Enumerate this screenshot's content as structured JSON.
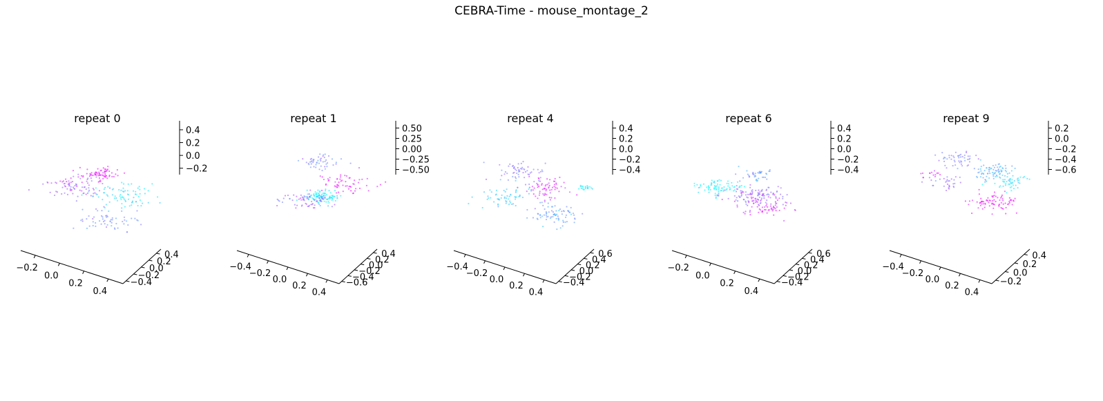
{
  "figure": {
    "suptitle": "CEBRA-Time - mouse_montage_2",
    "colors": {
      "low": "#00ffff",
      "high": "#ff00ff",
      "axis": "#000000"
    }
  },
  "chart_data": [
    {
      "type": "scatter",
      "title": "repeat 0",
      "x_ticks": [
        "−0.2",
        "0.0",
        "0.2",
        "0.4"
      ],
      "y_ticks": [
        "−0.4",
        "−0.2",
        "0.0",
        "0.2",
        "0.4"
      ],
      "z_ticks": [
        "−0.2",
        "0.0",
        "0.2",
        "0.4"
      ],
      "xlim": [
        -0.35,
        0.55
      ],
      "ylim": [
        -0.5,
        0.5
      ],
      "zlim": [
        -0.35,
        0.55
      ],
      "colormap": "cool",
      "clusters": [
        {
          "x": 0.05,
          "y": 0.05,
          "z": 0.25,
          "n": 70,
          "spread": 0.05,
          "c": 0.95
        },
        {
          "x": -0.15,
          "y": 0.0,
          "z": 0.05,
          "n": 60,
          "spread": 0.09,
          "c": 0.6
        },
        {
          "x": 0.25,
          "y": 0.05,
          "z": -0.05,
          "n": 80,
          "spread": 0.1,
          "c": 0.1
        },
        {
          "x": 0.2,
          "y": -0.25,
          "z": -0.25,
          "n": 60,
          "spread": 0.08,
          "c": 0.45
        },
        {
          "x": -0.3,
          "y": 0.15,
          "z": 0.05,
          "n": 25,
          "spread": 0.05,
          "c": 0.8
        }
      ]
    },
    {
      "type": "scatter",
      "title": "repeat 1",
      "x_ticks": [
        "−0.4",
        "−0.2",
        "0.0",
        "0.2",
        "0.4"
      ],
      "y_ticks": [
        "−0.6",
        "−0.4",
        "−0.2",
        "0.0",
        "0.2",
        "0.4"
      ],
      "z_ticks": [
        "−0.50",
        "−0.25",
        "0.00",
        "0.25",
        "0.50"
      ],
      "xlim": [
        -0.55,
        0.55
      ],
      "ylim": [
        -0.7,
        0.5
      ],
      "zlim": [
        -0.65,
        0.65
      ],
      "colormap": "cool",
      "clusters": [
        {
          "x": 0.0,
          "y": -0.1,
          "z": -0.2,
          "n": 110,
          "spread": 0.07,
          "c": 0.08
        },
        {
          "x": -0.1,
          "y": 0.1,
          "z": 0.4,
          "n": 50,
          "spread": 0.07,
          "c": 0.5
        },
        {
          "x": 0.25,
          "y": 0.05,
          "z": 0.0,
          "n": 60,
          "spread": 0.1,
          "c": 0.9
        },
        {
          "x": -0.15,
          "y": -0.2,
          "z": -0.25,
          "n": 60,
          "spread": 0.09,
          "c": 0.65
        }
      ]
    },
    {
      "type": "scatter",
      "title": "repeat 4",
      "x_ticks": [
        "−0.4",
        "−0.2",
        "0.0",
        "0.2",
        "0.4"
      ],
      "y_ticks": [
        "−0.4",
        "−0.2",
        "0.0",
        "0.2",
        "0.4",
        "0.6"
      ],
      "z_ticks": [
        "−0.4",
        "−0.2",
        "0.0",
        "0.2",
        "0.4"
      ],
      "xlim": [
        -0.55,
        0.55
      ],
      "ylim": [
        -0.5,
        0.7
      ],
      "zlim": [
        -0.45,
        0.55
      ],
      "colormap": "cool",
      "clusters": [
        {
          "x": -0.2,
          "y": 0.1,
          "z": 0.25,
          "n": 60,
          "spread": 0.09,
          "c": 0.55
        },
        {
          "x": 0.1,
          "y": 0.05,
          "z": 0.05,
          "n": 70,
          "spread": 0.1,
          "c": 0.85
        },
        {
          "x": 0.25,
          "y": -0.2,
          "z": -0.25,
          "n": 80,
          "spread": 0.09,
          "c": 0.4
        },
        {
          "x": -0.25,
          "y": -0.1,
          "z": -0.05,
          "n": 60,
          "spread": 0.1,
          "c": 0.2
        },
        {
          "x": 0.45,
          "y": 0.2,
          "z": 0.05,
          "n": 20,
          "spread": 0.03,
          "c": 0.05
        }
      ]
    },
    {
      "type": "scatter",
      "title": "repeat 6",
      "x_ticks": [
        "−0.2",
        "0.0",
        "0.2",
        "0.4"
      ],
      "y_ticks": [
        "−0.4",
        "−0.2",
        "0.0",
        "0.2",
        "0.4",
        "0.6"
      ],
      "z_ticks": [
        "−0.4",
        "−0.2",
        "0.0",
        "0.2",
        "0.4"
      ],
      "xlim": [
        -0.35,
        0.55
      ],
      "ylim": [
        -0.5,
        0.7
      ],
      "zlim": [
        -0.45,
        0.55
      ],
      "colormap": "cool",
      "clusters": [
        {
          "x": -0.2,
          "y": 0.0,
          "z": 0.05,
          "n": 80,
          "spread": 0.07,
          "c": 0.05
        },
        {
          "x": 0.1,
          "y": 0.0,
          "z": -0.05,
          "n": 110,
          "spread": 0.09,
          "c": 0.6
        },
        {
          "x": 0.25,
          "y": -0.1,
          "z": -0.15,
          "n": 70,
          "spread": 0.09,
          "c": 0.85
        },
        {
          "x": 0.05,
          "y": 0.2,
          "z": 0.2,
          "n": 40,
          "spread": 0.06,
          "c": 0.4
        }
      ]
    },
    {
      "type": "scatter",
      "title": "repeat 9",
      "x_ticks": [
        "−0.4",
        "−0.2",
        "0.0",
        "0.2",
        "0.4"
      ],
      "y_ticks": [
        "−0.2",
        "0.0",
        "0.2",
        "0.4"
      ],
      "z_ticks": [
        "−0.6",
        "−0.4",
        "−0.2",
        "0.0",
        "0.2"
      ],
      "xlim": [
        -0.55,
        0.55
      ],
      "ylim": [
        -0.3,
        0.5
      ],
      "zlim": [
        -0.7,
        0.3
      ],
      "colormap": "cool",
      "clusters": [
        {
          "x": -0.15,
          "y": 0.1,
          "z": 0.2,
          "n": 50,
          "spread": 0.08,
          "c": 0.5
        },
        {
          "x": 0.2,
          "y": 0.1,
          "z": 0.05,
          "n": 80,
          "spread": 0.07,
          "c": 0.3
        },
        {
          "x": 0.3,
          "y": -0.1,
          "z": -0.3,
          "n": 80,
          "spread": 0.08,
          "c": 0.95
        },
        {
          "x": 0.4,
          "y": 0.05,
          "z": -0.05,
          "n": 50,
          "spread": 0.06,
          "c": 0.1
        },
        {
          "x": -0.45,
          "y": 0.1,
          "z": -0.05,
          "n": 15,
          "spread": 0.03,
          "c": 0.9
        },
        {
          "x": -0.2,
          "y": -0.05,
          "z": -0.1,
          "n": 30,
          "spread": 0.06,
          "c": 0.6
        }
      ]
    }
  ]
}
